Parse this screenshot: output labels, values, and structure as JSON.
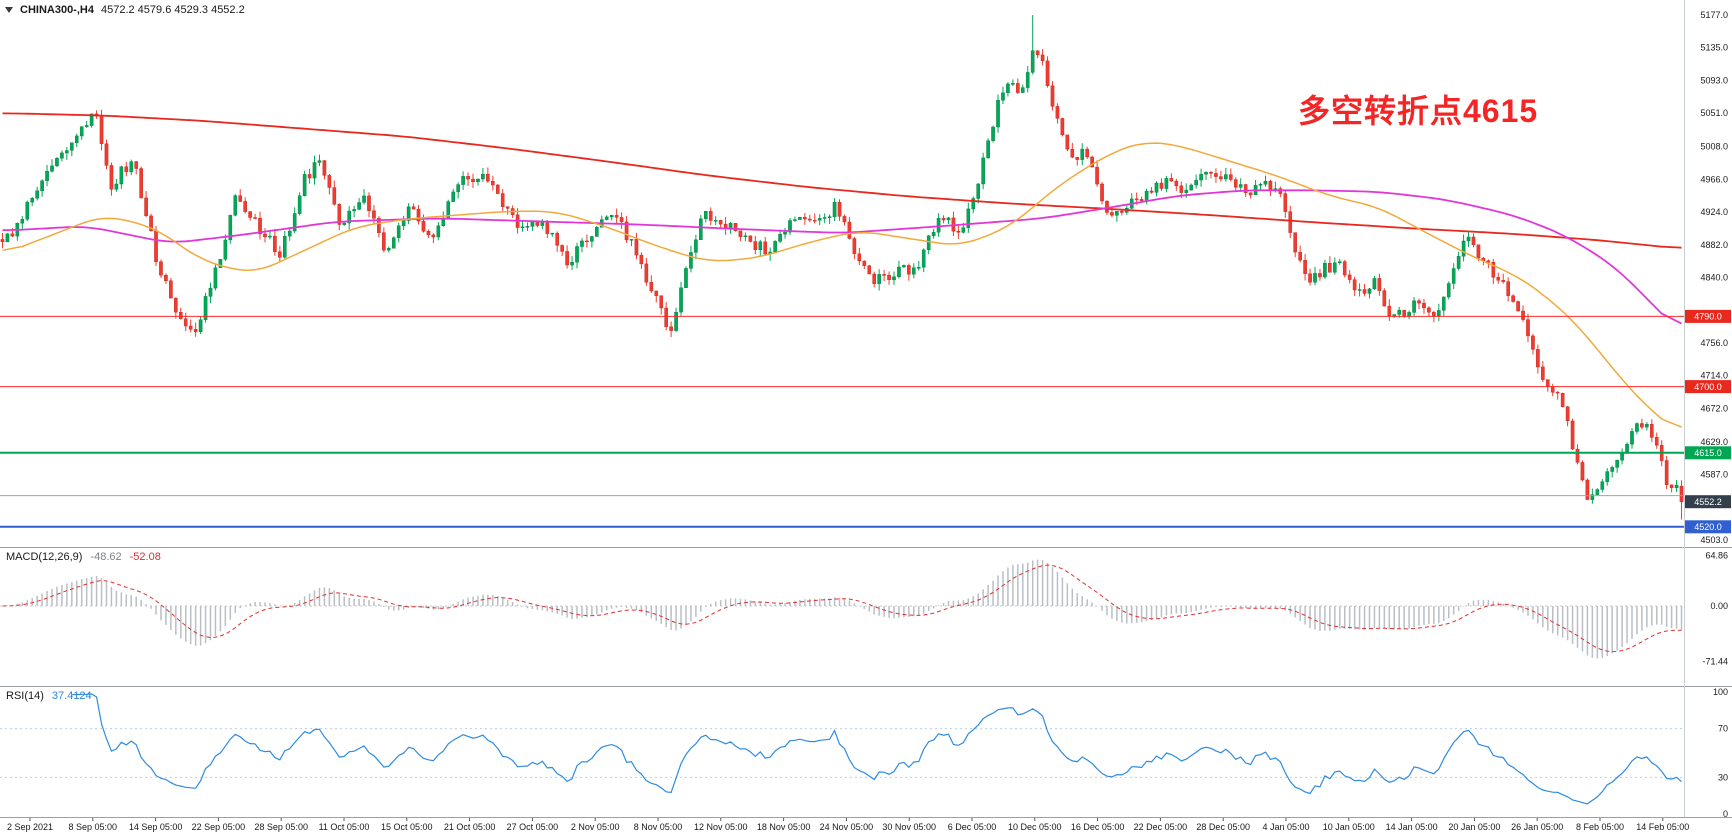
{
  "window": {
    "background": "#ffffff"
  },
  "header": {
    "symbol_label": "CHINA300-,H4",
    "ohlc_text": "4572.2 4579.6 4529.3 4552.2",
    "dropdown_icon": "triangle-down"
  },
  "annotation": {
    "text": "多空转折点4615",
    "color": "#f42525"
  },
  "price_axis": {
    "labels": [
      "5177.0",
      "5135.0",
      "5093.0",
      "5051.0",
      "5008.0",
      "4966.0",
      "4924.0",
      "4882.0",
      "4840.0",
      "4756.0",
      "4714.0",
      "4672.0",
      "4629.0",
      "4587.0",
      "4503.0"
    ],
    "badges": [
      {
        "text": "4790.0",
        "price": 4790.0,
        "bg": "#e8291e",
        "fg": "#ffffff"
      },
      {
        "text": "4700.0",
        "price": 4700.0,
        "bg": "#e8291e",
        "fg": "#ffffff"
      },
      {
        "text": "4615.0",
        "price": 4615.0,
        "bg": "#00a651",
        "fg": "#ffffff"
      },
      {
        "text": "4552.2",
        "price": 4552.2,
        "bg": "#343f4e",
        "fg": "#ffffff"
      },
      {
        "text": "4520.0",
        "price": 4520.0,
        "bg": "#2f5fd0",
        "fg": "#ffffff"
      }
    ]
  },
  "macd_panel": {
    "label": "MACD(12,26,9)",
    "value_main": "-48.62",
    "value_signal": "-52.08",
    "axis_labels": [
      {
        "text": "64.86",
        "value": 64.86
      },
      {
        "text": "0.00",
        "value": 0
      },
      {
        "text": "-71.44",
        "value": -71.44
      }
    ]
  },
  "rsi_panel": {
    "label": "RSI(14)",
    "value": "37.4124",
    "axis_labels": [
      {
        "text": "100",
        "value": 100
      },
      {
        "text": "70",
        "value": 70
      },
      {
        "text": "30",
        "value": 30
      },
      {
        "text": "0",
        "value": 0
      }
    ]
  },
  "time_axis": {
    "labels": [
      "2 Sep 2021",
      "8 Sep 05:00",
      "14 Sep 05:00",
      "22 Sep 05:00",
      "28 Sep 05:00",
      "11 Oct 05:00",
      "15 Oct 05:00",
      "21 Oct 05:00",
      "27 Oct 05:00",
      "2 Nov 05:00",
      "8 Nov 05:00",
      "12 Nov 05:00",
      "18 Nov 05:00",
      "24 Nov 05:00",
      "30 Nov 05:00",
      "6 Dec 05:00",
      "10 Dec 05:00",
      "16 Dec 05:00",
      "22 Dec 05:00",
      "28 Dec 05:00",
      "4 Jan 05:00",
      "10 Jan 05:00",
      "14 Jan 05:00",
      "20 Jan 05:00",
      "26 Jan 05:00",
      "8 Feb 05:00",
      "14 Feb 05:00"
    ]
  },
  "chart_data": {
    "type": "candlestick",
    "symbol": "CHINA300-",
    "timeframe": "H4",
    "current_bar": {
      "open": 4572.2,
      "high": 4579.6,
      "low": 4529.3,
      "close": 4552.2
    },
    "price_axis_range": [
      4503.0,
      5177.0
    ],
    "candle_count": 340,
    "up_color": "#00a857",
    "up_stroke": "#067a3c",
    "down_color": "#f03b30",
    "down_stroke": "#c22318",
    "spike_high": {
      "t": 0.614,
      "price": 5177.0
    },
    "close_waypoints": [
      [
        0,
        4880
      ],
      [
        0.02,
        4950
      ],
      [
        0.033,
        4992
      ],
      [
        0.055,
        5050
      ],
      [
        0.065,
        4960
      ],
      [
        0.078,
        4992
      ],
      [
        0.091,
        4870
      ],
      [
        0.104,
        4790
      ],
      [
        0.114,
        4762
      ],
      [
        0.127,
        4850
      ],
      [
        0.14,
        4948
      ],
      [
        0.153,
        4900
      ],
      [
        0.166,
        4872
      ],
      [
        0.18,
        4968
      ],
      [
        0.189,
        4990
      ],
      [
        0.202,
        4902
      ],
      [
        0.215,
        4950
      ],
      [
        0.228,
        4870
      ],
      [
        0.242,
        4930
      ],
      [
        0.255,
        4890
      ],
      [
        0.271,
        4958
      ],
      [
        0.284,
        4974
      ],
      [
        0.297,
        4940
      ],
      [
        0.31,
        4900
      ],
      [
        0.323,
        4910
      ],
      [
        0.336,
        4856
      ],
      [
        0.349,
        4890
      ],
      [
        0.362,
        4930
      ],
      [
        0.375,
        4880
      ],
      [
        0.392,
        4800
      ],
      [
        0.398,
        4762
      ],
      [
        0.408,
        4868
      ],
      [
        0.418,
        4920
      ],
      [
        0.431,
        4910
      ],
      [
        0.444,
        4890
      ],
      [
        0.457,
        4870
      ],
      [
        0.47,
        4920
      ],
      [
        0.483,
        4910
      ],
      [
        0.496,
        4930
      ],
      [
        0.509,
        4870
      ],
      [
        0.519,
        4832
      ],
      [
        0.532,
        4850
      ],
      [
        0.545,
        4852
      ],
      [
        0.558,
        4918
      ],
      [
        0.571,
        4900
      ],
      [
        0.581,
        4958
      ],
      [
        0.591,
        5048
      ],
      [
        0.597,
        5090
      ],
      [
        0.607,
        5078
      ],
      [
        0.614,
        5128
      ],
      [
        0.62,
        5112
      ],
      [
        0.626,
        5058
      ],
      [
        0.632,
        5022
      ],
      [
        0.638,
        4992
      ],
      [
        0.644,
        5010
      ],
      [
        0.65,
        4970
      ],
      [
        0.657,
        4932
      ],
      [
        0.664,
        4922
      ],
      [
        0.673,
        4940
      ],
      [
        0.683,
        4950
      ],
      [
        0.693,
        4960
      ],
      [
        0.703,
        4954
      ],
      [
        0.712,
        4968
      ],
      [
        0.722,
        4974
      ],
      [
        0.732,
        4960
      ],
      [
        0.742,
        4950
      ],
      [
        0.752,
        4956
      ],
      [
        0.761,
        4950
      ],
      [
        0.771,
        4870
      ],
      [
        0.778,
        4832
      ],
      [
        0.787,
        4850
      ],
      [
        0.797,
        4856
      ],
      [
        0.807,
        4820
      ],
      [
        0.817,
        4832
      ],
      [
        0.827,
        4782
      ],
      [
        0.836,
        4800
      ],
      [
        0.846,
        4810
      ],
      [
        0.856,
        4790
      ],
      [
        0.866,
        4868
      ],
      [
        0.872,
        4898
      ],
      [
        0.882,
        4860
      ],
      [
        0.892,
        4840
      ],
      [
        0.902,
        4798
      ],
      [
        0.911,
        4748
      ],
      [
        0.918,
        4700
      ],
      [
        0.928,
        4688
      ],
      [
        0.938,
        4600
      ],
      [
        0.944,
        4560
      ],
      [
        0.954,
        4582
      ],
      [
        0.964,
        4620
      ],
      [
        0.974,
        4650
      ],
      [
        0.98,
        4644
      ],
      [
        0.987,
        4618
      ],
      [
        0.992,
        4560
      ],
      [
        0.996,
        4580
      ],
      [
        1,
        4552.2
      ]
    ],
    "moving_averages": [
      {
        "name": "slow-ma",
        "color": "#e8281e",
        "width": 1.8,
        "points": [
          [
            0,
            5051
          ],
          [
            0.06,
            5048
          ],
          [
            0.12,
            5041
          ],
          [
            0.18,
            5031
          ],
          [
            0.24,
            5021
          ],
          [
            0.3,
            5006
          ],
          [
            0.36,
            4989
          ],
          [
            0.42,
            4971
          ],
          [
            0.48,
            4956
          ],
          [
            0.54,
            4944
          ],
          [
            0.6,
            4935
          ],
          [
            0.66,
            4928
          ],
          [
            0.72,
            4920
          ],
          [
            0.78,
            4911
          ],
          [
            0.84,
            4903
          ],
          [
            0.9,
            4896
          ],
          [
            0.95,
            4888
          ],
          [
            1,
            4877
          ]
        ]
      },
      {
        "name": "mid-ma",
        "color": "#e038d8",
        "width": 1.8,
        "points": [
          [
            0,
            4900
          ],
          [
            0.05,
            4906
          ],
          [
            0.1,
            4884
          ],
          [
            0.14,
            4894
          ],
          [
            0.2,
            4912
          ],
          [
            0.26,
            4916
          ],
          [
            0.32,
            4912
          ],
          [
            0.38,
            4908
          ],
          [
            0.44,
            4902
          ],
          [
            0.5,
            4897
          ],
          [
            0.56,
            4906
          ],
          [
            0.62,
            4916
          ],
          [
            0.66,
            4930
          ],
          [
            0.7,
            4945
          ],
          [
            0.74,
            4952
          ],
          [
            0.78,
            4952
          ],
          [
            0.82,
            4950
          ],
          [
            0.86,
            4940
          ],
          [
            0.9,
            4920
          ],
          [
            0.93,
            4895
          ],
          [
            0.96,
            4855
          ],
          [
            1,
            4768
          ]
        ]
      },
      {
        "name": "fast-ma",
        "color": "#f2a93b",
        "width": 1.5,
        "points": [
          [
            0,
            4870
          ],
          [
            0.03,
            4895
          ],
          [
            0.06,
            4920
          ],
          [
            0.09,
            4905
          ],
          [
            0.12,
            4860
          ],
          [
            0.15,
            4845
          ],
          [
            0.18,
            4875
          ],
          [
            0.21,
            4905
          ],
          [
            0.24,
            4915
          ],
          [
            0.27,
            4920
          ],
          [
            0.3,
            4925
          ],
          [
            0.33,
            4925
          ],
          [
            0.36,
            4905
          ],
          [
            0.39,
            4880
          ],
          [
            0.42,
            4860
          ],
          [
            0.45,
            4865
          ],
          [
            0.48,
            4885
          ],
          [
            0.51,
            4900
          ],
          [
            0.54,
            4890
          ],
          [
            0.57,
            4880
          ],
          [
            0.6,
            4905
          ],
          [
            0.63,
            4960
          ],
          [
            0.66,
            5000
          ],
          [
            0.68,
            5015
          ],
          [
            0.7,
            5010
          ],
          [
            0.73,
            4990
          ],
          [
            0.76,
            4970
          ],
          [
            0.79,
            4945
          ],
          [
            0.82,
            4930
          ],
          [
            0.85,
            4895
          ],
          [
            0.88,
            4862
          ],
          [
            0.9,
            4845
          ],
          [
            0.92,
            4815
          ],
          [
            0.94,
            4775
          ],
          [
            0.96,
            4720
          ],
          [
            0.98,
            4672
          ],
          [
            1,
            4638
          ]
        ]
      }
    ],
    "horizontal_lines": [
      {
        "price": 4790.0,
        "color": "#ff2a2a",
        "width": 1
      },
      {
        "price": 4700.0,
        "color": "#ff2a2a",
        "width": 1
      },
      {
        "price": 4615.0,
        "color": "#00a651",
        "width": 2
      },
      {
        "price": 4560.0,
        "color": "#8ea8c4",
        "width": 1
      },
      {
        "price": 4520.0,
        "color": "#2f5fd0",
        "width": 2
      }
    ],
    "indicators": {
      "macd": {
        "fast": 12,
        "slow": 26,
        "signal": 9,
        "main_value": -48.62,
        "signal_value": -52.08,
        "axis_max": 64.86,
        "axis_min": -71.44,
        "histogram_color": "#b9bfc5",
        "signal_color": "#e03030"
      },
      "rsi": {
        "period": 14,
        "value": 37.4124,
        "levels": [
          70,
          30
        ],
        "line_color": "#2e8be0"
      }
    }
  }
}
